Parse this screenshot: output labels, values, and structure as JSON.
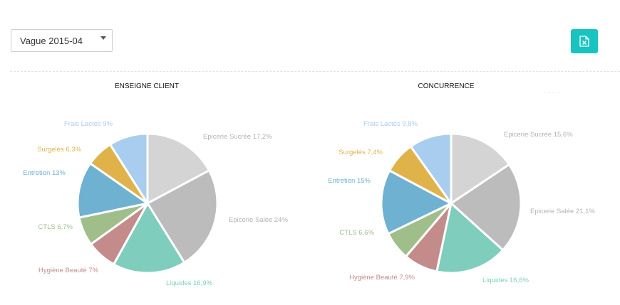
{
  "toolbar": {
    "wave_select_value": "Vague 2015-04",
    "export_icon": "excel-export-icon",
    "accent_color": "#19c3c0"
  },
  "chart_data": [
    {
      "type": "pie",
      "title": "ENSEIGNE CLIENT",
      "slices": [
        {
          "label": "Epicerie Sucrée 17,2%",
          "value": 17.2,
          "color": "#d4d4d4"
        },
        {
          "label": "Epicerie Salée 24%",
          "value": 24,
          "color": "#bcbcbc"
        },
        {
          "label": "Liquides 16,9%",
          "value": 16.9,
          "color": "#7ecdbd"
        },
        {
          "label": "Hygiène Beauté 7%",
          "value": 7,
          "color": "#c48b8b"
        },
        {
          "label": "CTLS 6,7%",
          "value": 6.7,
          "color": "#9fbe8a"
        },
        {
          "label": "Entretien 13%",
          "value": 13,
          "color": "#6fb1d1"
        },
        {
          "label": "Surgelés 6,3%",
          "value": 6.3,
          "color": "#e0b24a"
        },
        {
          "label": "Frais Lactés 9%",
          "value": 9,
          "color": "#a8cdee"
        }
      ]
    },
    {
      "type": "pie",
      "title": "CONCURRENCE",
      "slices": [
        {
          "label": "Epicerie Sucrée 15,6%",
          "value": 15.6,
          "color": "#d4d4d4"
        },
        {
          "label": "Epicerie Salée 21,1%",
          "value": 21.1,
          "color": "#bcbcbc"
        },
        {
          "label": "Liquides 16,6%",
          "value": 16.6,
          "color": "#7ecdbd"
        },
        {
          "label": "Hygiène Beauté 7,9%",
          "value": 7.9,
          "color": "#c48b8b"
        },
        {
          "label": "CTLS 6,6%",
          "value": 6.6,
          "color": "#9fbe8a"
        },
        {
          "label": "Entretien 15%",
          "value": 15,
          "color": "#6fb1d1"
        },
        {
          "label": "Surgelés 7,4%",
          "value": 7.4,
          "color": "#e0b24a"
        },
        {
          "label": "Frais Lactés 9,8%",
          "value": 9.8,
          "color": "#a8cdee"
        }
      ]
    }
  ]
}
